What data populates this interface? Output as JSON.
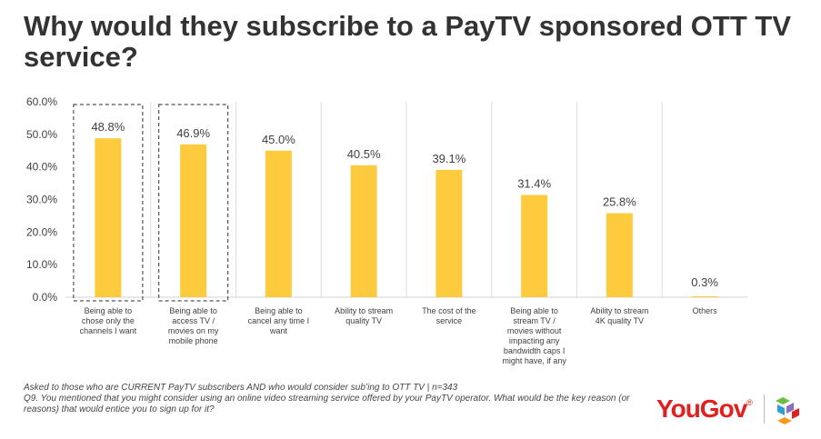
{
  "title": "Why would they subscribe to a PayTV sponsored OTT TV service?",
  "chart_data": {
    "type": "bar",
    "categories": [
      [
        "Being able to",
        "chose only the",
        "channels I want"
      ],
      [
        "Being able to",
        "access TV /",
        "movies on my",
        "mobile phone"
      ],
      [
        "Being able to",
        "cancel any time I",
        "want"
      ],
      [
        "Ability to stream",
        "quality TV"
      ],
      [
        "The cost of the",
        "service"
      ],
      [
        "Being able to",
        "stream TV /",
        "movies without",
        "impacting any",
        "bandwidth caps I",
        "might have, if any"
      ],
      [
        "Ability to stream",
        "4K quality TV"
      ],
      [
        "Others"
      ]
    ],
    "values": [
      48.8,
      46.9,
      45.0,
      40.5,
      39.1,
      31.4,
      25.8,
      0.3
    ],
    "data_labels": [
      "48.8%",
      "46.9%",
      "45.0%",
      "40.5%",
      "39.1%",
      "31.4%",
      "25.8%",
      "0.3%"
    ],
    "highlighted": [
      true,
      true,
      false,
      false,
      false,
      false,
      false,
      false
    ],
    "yticks": [
      "0.0%",
      "10.0%",
      "20.0%",
      "30.0%",
      "40.0%",
      "50.0%",
      "60.0%"
    ],
    "ylim": [
      0,
      60
    ],
    "xlabel": "",
    "ylabel": "",
    "bar_color": "#fecb3e",
    "grid": "vertical separators"
  },
  "footnote": {
    "line1": "Asked to those who are CURRENT PayTV subscribers AND who would consider sub’ing to OTT TV | n=343",
    "line2": "Q9. You mentioned that you might consider using an online video streaming service offered by your PayTV operator. What would be the key reason (or reasons) that would entice you to sign up for it?"
  },
  "logo": {
    "text": "YouGov",
    "mark": "®",
    "icon": "yougov-cubes-icon"
  }
}
